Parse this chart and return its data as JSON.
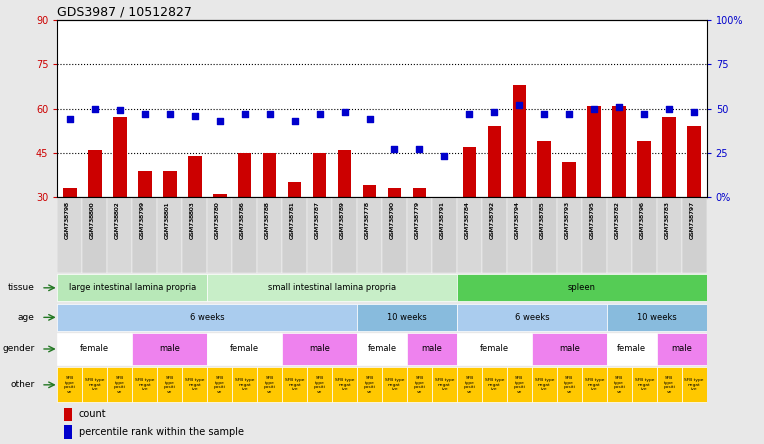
{
  "title": "GDS3987 / 10512827",
  "samples": [
    "GSM738798",
    "GSM738800",
    "GSM738802",
    "GSM738799",
    "GSM738801",
    "GSM738803",
    "GSM738780",
    "GSM738786",
    "GSM738788",
    "GSM738781",
    "GSM738787",
    "GSM738789",
    "GSM738778",
    "GSM738790",
    "GSM738779",
    "GSM738791",
    "GSM738784",
    "GSM738792",
    "GSM738794",
    "GSM738785",
    "GSM738793",
    "GSM738795",
    "GSM738782",
    "GSM738796",
    "GSM738783",
    "GSM738797"
  ],
  "bar_heights": [
    33,
    46,
    57,
    39,
    39,
    44,
    31,
    45,
    45,
    35,
    45,
    46,
    34,
    33,
    33,
    30,
    47,
    54,
    68,
    49,
    42,
    61,
    61,
    49,
    57,
    54
  ],
  "blue_markers": [
    44,
    50,
    49,
    47,
    47,
    46,
    43,
    47,
    47,
    43,
    47,
    48,
    44,
    27,
    27,
    23,
    47,
    48,
    52,
    47,
    47,
    50,
    51,
    47,
    50,
    48
  ],
  "ylim_left": [
    30,
    90
  ],
  "ylim_right": [
    0,
    100
  ],
  "yticks_left": [
    30,
    45,
    60,
    75,
    90
  ],
  "yticks_right": [
    0,
    25,
    50,
    75,
    100
  ],
  "ytick_labels_right": [
    "0%",
    "25",
    "50",
    "75",
    "100%"
  ],
  "hlines": [
    45,
    60,
    75
  ],
  "bar_color": "#cc0000",
  "marker_color": "#0000cc",
  "left_ytick_color": "#cc0000",
  "right_ytick_color": "#0000cc",
  "bg_color": "#e8e8e8",
  "plot_bg": "#ffffff",
  "tissue_groups": [
    {
      "label": "large intestinal lamina propria",
      "start": 0,
      "end": 6,
      "color": "#b8e8b8"
    },
    {
      "label": "small intestinal lamina propria",
      "start": 6,
      "end": 16,
      "color": "#c8eec8"
    },
    {
      "label": "spleen",
      "start": 16,
      "end": 26,
      "color": "#55cc55"
    }
  ],
  "age_groups": [
    {
      "label": "6 weeks",
      "start": 0,
      "end": 12,
      "color": "#aaccee"
    },
    {
      "label": "10 weeks",
      "start": 12,
      "end": 16,
      "color": "#88bbdd"
    },
    {
      "label": "6 weeks",
      "start": 16,
      "end": 22,
      "color": "#aaccee"
    },
    {
      "label": "10 weeks",
      "start": 22,
      "end": 26,
      "color": "#88bbdd"
    }
  ],
  "gender_groups": [
    {
      "label": "female",
      "start": 0,
      "end": 3,
      "color": "#ffffff"
    },
    {
      "label": "male",
      "start": 3,
      "end": 6,
      "color": "#ee82ee"
    },
    {
      "label": "female",
      "start": 6,
      "end": 9,
      "color": "#ffffff"
    },
    {
      "label": "male",
      "start": 9,
      "end": 12,
      "color": "#ee82ee"
    },
    {
      "label": "female",
      "start": 12,
      "end": 14,
      "color": "#ffffff"
    },
    {
      "label": "male",
      "start": 14,
      "end": 16,
      "color": "#ee82ee"
    },
    {
      "label": "female",
      "start": 16,
      "end": 19,
      "color": "#ffffff"
    },
    {
      "label": "male",
      "start": 19,
      "end": 22,
      "color": "#ee82ee"
    },
    {
      "label": "female",
      "start": 22,
      "end": 24,
      "color": "#ffffff"
    },
    {
      "label": "male",
      "start": 24,
      "end": 26,
      "color": "#ee82ee"
    }
  ]
}
